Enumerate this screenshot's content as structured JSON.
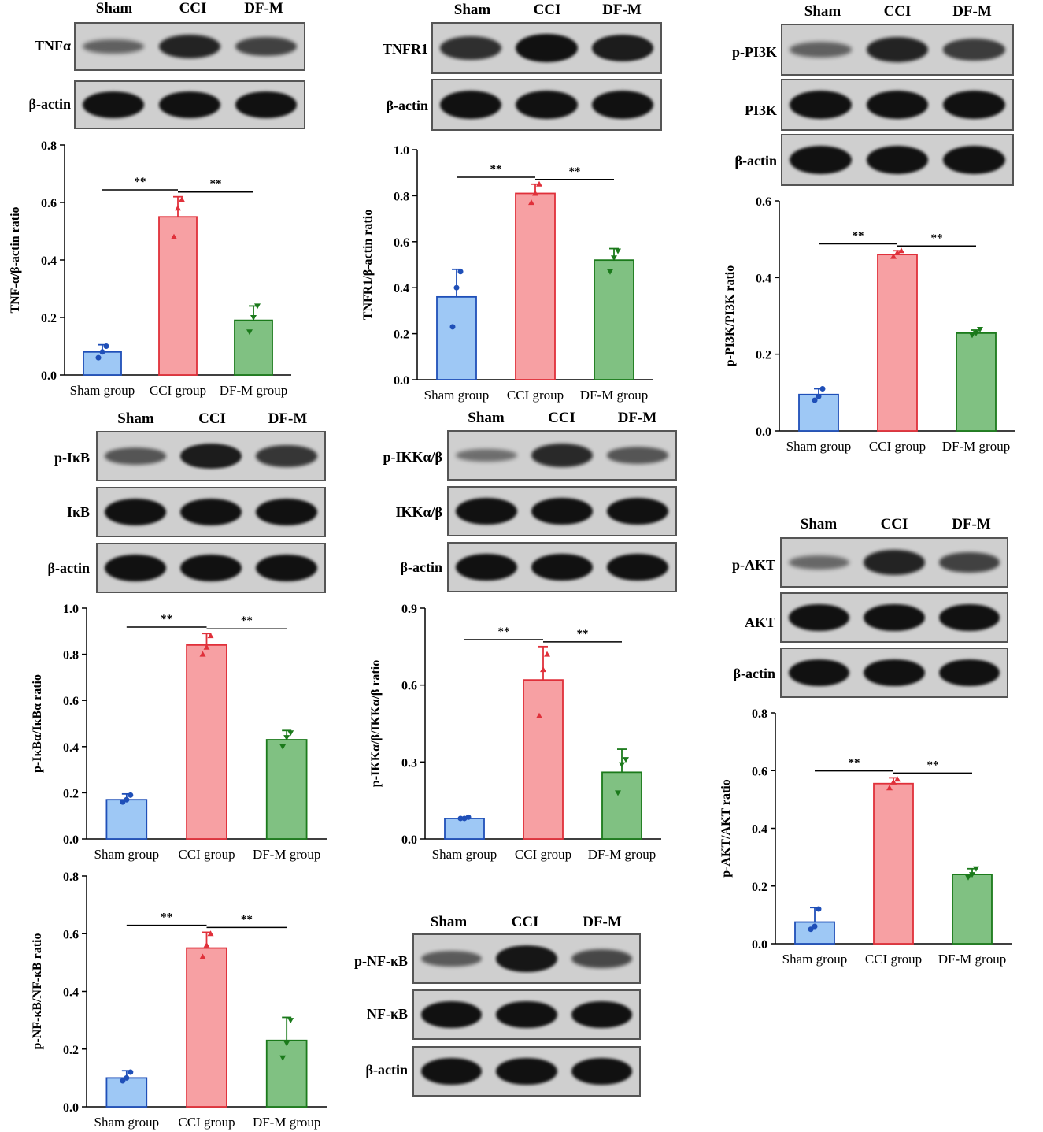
{
  "colors": {
    "sham_fill": "#9ec8f5",
    "sham_stroke": "#1f4fb8",
    "cci_fill": "#f7a0a3",
    "cci_stroke": "#e0303a",
    "dfm_fill": "#80c182",
    "dfm_stroke": "#1b7a1b",
    "membrane": "#cfcfcf",
    "band": "#111111"
  },
  "blots": [
    {
      "id": "tnf",
      "headers": [
        "Sham",
        "CCI",
        "DF-M"
      ],
      "rows": [
        {
          "label": "TNFα",
          "intensity": [
            0.35,
            0.85,
            0.6
          ]
        },
        {
          "label": "β-actin",
          "intensity": [
            1,
            1,
            1
          ]
        }
      ]
    },
    {
      "id": "tnfr1",
      "headers": [
        "Sham",
        "CCI",
        "DF-M"
      ],
      "rows": [
        {
          "label": "TNFR1",
          "intensity": [
            0.75,
            1,
            0.9
          ]
        },
        {
          "label": "β-actin",
          "intensity": [
            1,
            1,
            1
          ]
        }
      ]
    },
    {
      "id": "pi3k",
      "headers": [
        "Sham",
        "CCI",
        "DF-M"
      ],
      "rows": [
        {
          "label": "p-PI3K",
          "intensity": [
            0.35,
            0.85,
            0.65
          ]
        },
        {
          "label": "PI3K",
          "intensity": [
            1,
            1,
            1
          ]
        },
        {
          "label": "β-actin",
          "intensity": [
            1,
            1,
            1
          ]
        }
      ]
    },
    {
      "id": "ikb",
      "headers": [
        "Sham",
        "CCI",
        "DF-M"
      ],
      "rows": [
        {
          "label": "p-IκB",
          "intensity": [
            0.45,
            0.9,
            0.7
          ]
        },
        {
          "label": "IκB",
          "intensity": [
            1,
            1,
            1
          ]
        },
        {
          "label": "β-actin",
          "intensity": [
            1,
            1,
            1
          ]
        }
      ]
    },
    {
      "id": "ikk",
      "headers": [
        "Sham",
        "CCI",
        "DF-M"
      ],
      "rows": [
        {
          "label": "p-IKKα/β",
          "intensity": [
            0.25,
            0.8,
            0.45
          ]
        },
        {
          "label": "IKKα/β",
          "intensity": [
            1,
            1,
            1
          ]
        },
        {
          "label": "β-actin",
          "intensity": [
            1,
            1,
            1
          ]
        }
      ]
    },
    {
      "id": "akt",
      "headers": [
        "Sham",
        "CCI",
        "DF-M"
      ],
      "rows": [
        {
          "label": "p-AKT",
          "intensity": [
            0.3,
            0.85,
            0.6
          ]
        },
        {
          "label": "AKT",
          "intensity": [
            1,
            1,
            1
          ]
        },
        {
          "label": "β-actin",
          "intensity": [
            1,
            1,
            1
          ]
        }
      ]
    },
    {
      "id": "nfkb",
      "headers": [
        "Sham",
        "CCI",
        "DF-M"
      ],
      "rows": [
        {
          "label": "p-NF-κB",
          "intensity": [
            0.4,
            0.95,
            0.55
          ]
        },
        {
          "label": "NF-κB",
          "intensity": [
            1,
            1,
            1
          ]
        },
        {
          "label": "β-actin",
          "intensity": [
            1,
            1,
            1
          ]
        }
      ]
    }
  ],
  "chart_data": [
    {
      "id": "tnf",
      "type": "bar",
      "categories": [
        "Sham group",
        "CCI group",
        "DF-M group"
      ],
      "values": [
        0.08,
        0.55,
        0.19
      ],
      "errors": [
        0.025,
        0.07,
        0.05
      ],
      "points": [
        [
          0.06,
          0.08,
          0.1
        ],
        [
          0.48,
          0.58,
          0.61
        ],
        [
          0.15,
          0.2,
          0.24
        ]
      ],
      "ylabel": "TNF-α/β-actin ratio",
      "ylim": [
        0,
        0.8
      ],
      "yticks": [
        "0.0",
        "0.2",
        "0.4",
        "0.6",
        "0.8"
      ],
      "significance": [
        {
          "from": 0,
          "to": 1,
          "label": "**"
        },
        {
          "from": 1,
          "to": 2,
          "label": "**"
        }
      ]
    },
    {
      "id": "tnfr1",
      "type": "bar",
      "categories": [
        "Sham group",
        "CCI group",
        "DF-M group"
      ],
      "values": [
        0.36,
        0.81,
        0.52
      ],
      "errors": [
        0.12,
        0.04,
        0.05
      ],
      "points": [
        [
          0.23,
          0.4,
          0.47
        ],
        [
          0.77,
          0.81,
          0.85
        ],
        [
          0.47,
          0.53,
          0.56
        ]
      ],
      "ylabel": "TNFR1/β-actin ratio",
      "ylim": [
        0,
        1.0
      ],
      "yticks": [
        "0.0",
        "0.2",
        "0.4",
        "0.6",
        "0.8",
        "1.0"
      ],
      "significance": [
        {
          "from": 0,
          "to": 1,
          "label": "**"
        },
        {
          "from": 1,
          "to": 2,
          "label": "**"
        }
      ]
    },
    {
      "id": "pi3k",
      "type": "bar",
      "categories": [
        "Sham group",
        "CCI group",
        "DF-M group"
      ],
      "values": [
        0.095,
        0.46,
        0.255
      ],
      "errors": [
        0.015,
        0.01,
        0.008
      ],
      "points": [
        [
          0.08,
          0.09,
          0.11
        ],
        [
          0.455,
          0.465,
          0.47
        ],
        [
          0.25,
          0.255,
          0.265
        ]
      ],
      "ylabel": "p-PI3K/PI3K ratio",
      "ylim": [
        0,
        0.6
      ],
      "yticks": [
        "0.0",
        "0.2",
        "0.4",
        "0.6"
      ],
      "significance": [
        {
          "from": 0,
          "to": 1,
          "label": "**"
        },
        {
          "from": 1,
          "to": 2,
          "label": "**"
        }
      ]
    },
    {
      "id": "ikb",
      "type": "bar",
      "categories": [
        "Sham group",
        "CCI group",
        "DF-M group"
      ],
      "values": [
        0.17,
        0.84,
        0.43
      ],
      "errors": [
        0.025,
        0.05,
        0.04
      ],
      "points": [
        [
          0.16,
          0.17,
          0.19
        ],
        [
          0.8,
          0.83,
          0.88
        ],
        [
          0.4,
          0.44,
          0.46
        ]
      ],
      "ylabel": "p-IκBα/IκBα ratio",
      "ylim": [
        0,
        1.0
      ],
      "yticks": [
        "0.0",
        "0.2",
        "0.4",
        "0.6",
        "0.8",
        "1.0"
      ],
      "significance": [
        {
          "from": 0,
          "to": 1,
          "label": "**"
        },
        {
          "from": 1,
          "to": 2,
          "label": "**"
        }
      ]
    },
    {
      "id": "ikk",
      "type": "bar",
      "categories": [
        "Sham group",
        "CCI group",
        "DF-M group"
      ],
      "values": [
        0.08,
        0.62,
        0.26
      ],
      "errors": [
        0.005,
        0.13,
        0.09
      ],
      "points": [
        [
          0.08,
          0.08,
          0.085
        ],
        [
          0.48,
          0.66,
          0.72
        ],
        [
          0.18,
          0.29,
          0.31
        ]
      ],
      "ylabel": "p-IKKα/β/IKKα/β ratio",
      "ylim": [
        0,
        0.9
      ],
      "yticks": [
        "0.0",
        "0.3",
        "0.6",
        "0.9"
      ],
      "significance": [
        {
          "from": 0,
          "to": 1,
          "label": "**"
        },
        {
          "from": 1,
          "to": 2,
          "label": "**"
        }
      ]
    },
    {
      "id": "akt",
      "type": "bar",
      "categories": [
        "Sham group",
        "CCI group",
        "DF-M group"
      ],
      "values": [
        0.075,
        0.555,
        0.24
      ],
      "errors": [
        0.05,
        0.02,
        0.02
      ],
      "points": [
        [
          0.05,
          0.06,
          0.12
        ],
        [
          0.54,
          0.56,
          0.57
        ],
        [
          0.23,
          0.24,
          0.26
        ]
      ],
      "ylabel": "p-AKT/AKT ratio",
      "ylim": [
        0,
        0.8
      ],
      "yticks": [
        "0.0",
        "0.2",
        "0.4",
        "0.6",
        "0.8"
      ],
      "significance": [
        {
          "from": 0,
          "to": 1,
          "label": "**"
        },
        {
          "from": 1,
          "to": 2,
          "label": "**"
        }
      ]
    },
    {
      "id": "nfkb",
      "type": "bar",
      "categories": [
        "Sham group",
        "CCI group",
        "DF-M group"
      ],
      "values": [
        0.1,
        0.55,
        0.23
      ],
      "errors": [
        0.025,
        0.055,
        0.08
      ],
      "points": [
        [
          0.09,
          0.1,
          0.12
        ],
        [
          0.52,
          0.56,
          0.6
        ],
        [
          0.17,
          0.22,
          0.3
        ]
      ],
      "ylabel": "p-NF-κB/NF-κB ratio",
      "ylim": [
        0,
        0.8
      ],
      "yticks": [
        "0.0",
        "0.2",
        "0.4",
        "0.6",
        "0.8"
      ],
      "significance": [
        {
          "from": 0,
          "to": 1,
          "label": "**"
        },
        {
          "from": 1,
          "to": 2,
          "label": "**"
        }
      ]
    }
  ]
}
